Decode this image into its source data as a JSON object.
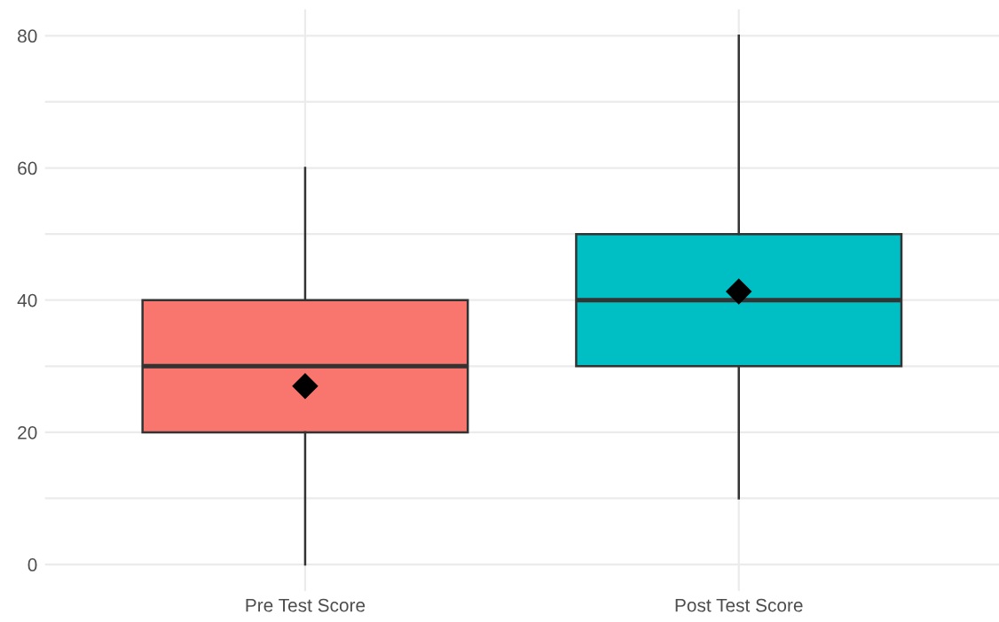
{
  "chart_data": {
    "type": "box",
    "categories": [
      "Pre Test Score",
      "Post Test Score"
    ],
    "boxes": [
      {
        "low": 0,
        "q1": 20,
        "median": 30,
        "q3": 40,
        "high": 60,
        "mean": 27
      },
      {
        "low": 10,
        "q1": 30,
        "median": 40,
        "q3": 50,
        "high": 80,
        "mean": 41.3
      }
    ],
    "colors": [
      "#f8766d",
      "#00bfc4"
    ],
    "marker": "diamond",
    "ylim": [
      -4,
      84
    ],
    "yticks": [
      0,
      {
        "value": 10,
        "label": null
      },
      20,
      {
        "value": 30,
        "label": null
      },
      40,
      {
        "value": 50,
        "label": null
      },
      60,
      {
        "value": 70,
        "label": null
      },
      80
    ],
    "grid": true
  }
}
